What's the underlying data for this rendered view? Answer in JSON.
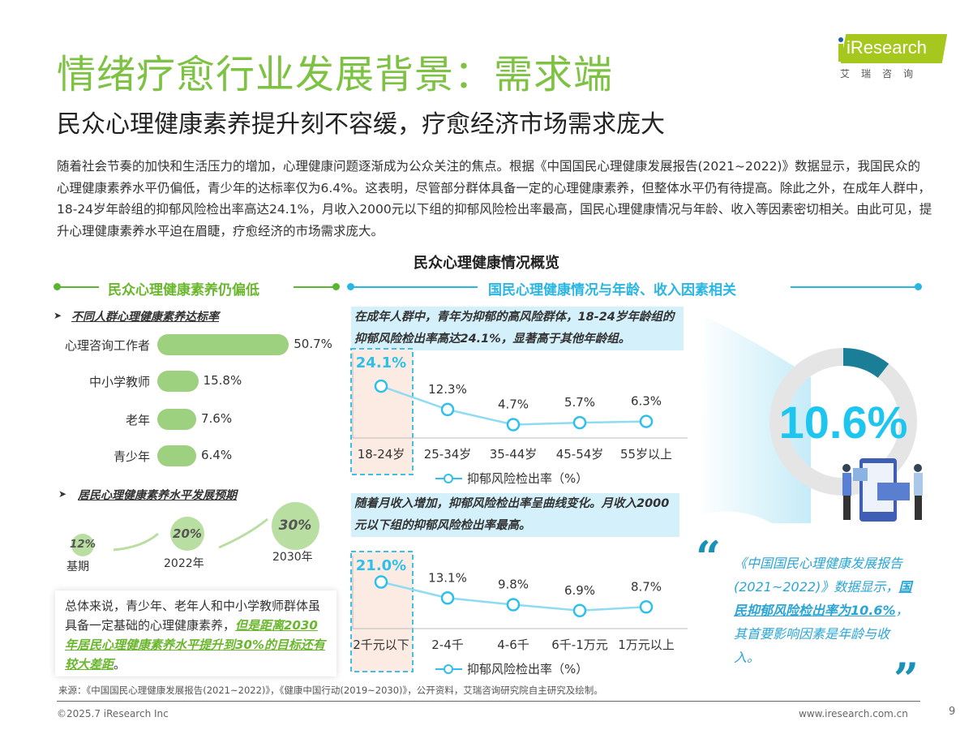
{
  "header": {
    "title": "情绪疗愈行业发展背景：需求端",
    "subtitle": "民众心理健康素养提升刻不容缓，疗愈经济市场需求庞大",
    "logo_text": "iResearch",
    "logo_cn": "艾瑞咨询",
    "brand_color": "#7dc242"
  },
  "intro": "随着社会节奏的加快和生活压力的增加，心理健康问题逐渐成为公众关注的焦点。根据《中国国民心理健康发展报告(2021~2022)》数据显示，我国民众的心理健康素养水平仍偏低，青少年的达标率仅为6.4%。这表明，尽管部分群体具备一定的心理健康素养，但整体水平仍有待提高。除此之外，在成年人群中，18-24岁年龄组的抑郁风险检出率高达24.1%，月收入2000元以下组的抑郁风险检出率最高，国民心理健康情况与年龄、收入等因素密切相关。由此可见，提升心理健康素养水平迫在眉睫，疗愈经济的市场需求庞大。",
  "overview_title": "民众心理健康情况概览",
  "left": {
    "section_title": "民众心理健康素养仍偏低",
    "sub1": "不同人群心理健康素养达标率",
    "sub2": "居民心理健康素养水平发展预期",
    "note_plain": "总体来说，青少年、老年人和中小学教师群体虽具备一定基础的心理健康素养，",
    "note_highlight": "但是距离2030年居民心理健康素养水平提升到30%的目标还有较大差距",
    "note_end": "。"
  },
  "right": {
    "section_title": "国民心理健康情况与年龄、收入因素相关",
    "callout1": "在成年人群中，青年为抑郁的高风险群体，18-24岁年龄组的抑郁风险检出率高达24.1%，显著高于其他年龄组。",
    "callout2": "随着月收入增加，抑郁风险检出率呈曲线变化。月收入2000元以下组的抑郁风险检出率最高。",
    "quote_a": "《中国国民心理健康发展报告(2021~2022)》数据显示，",
    "quote_b": "国民抑郁风险检出率为10.6%",
    "quote_c": "，其首要影响因素是年龄与收入。",
    "accent": "#29b6e3"
  },
  "chart_data": [
    {
      "type": "bar",
      "title": "不同人群心理健康素养达标率",
      "categories": [
        "心理咨询工作者",
        "中小学教师",
        "老年",
        "青少年"
      ],
      "values": [
        50.7,
        15.8,
        7.6,
        6.4
      ],
      "labels": [
        "50.7%",
        "15.8%",
        "7.6%",
        "6.4%"
      ],
      "color": "#9dd07f"
    },
    {
      "type": "bubble",
      "title": "居民心理健康素养水平发展预期",
      "categories": [
        "基期",
        "2022年",
        "2030年"
      ],
      "values": [
        12,
        20,
        30
      ],
      "labels": [
        "12%",
        "20%",
        "30%"
      ]
    },
    {
      "type": "line",
      "categories": [
        "18-24岁",
        "25-34岁",
        "35-44岁",
        "45-54岁",
        "55岁以上"
      ],
      "series": [
        {
          "name": "抑郁风险检出率（%）",
          "values": [
            24.1,
            12.3,
            4.7,
            5.7,
            6.3
          ],
          "labels": [
            "24.1%",
            "12.3%",
            "4.7%",
            "5.7%",
            "6.3%"
          ]
        }
      ],
      "ylim": [
        0,
        45
      ],
      "highlight": "18-24岁"
    },
    {
      "type": "line",
      "categories": [
        "2千元以下",
        "2-4千",
        "4-6千",
        "6千-1万元",
        "1万元以上"
      ],
      "series": [
        {
          "name": "抑郁风险检出率（%）",
          "values": [
            21.0,
            13.1,
            9.8,
            6.9,
            8.7
          ],
          "labels": [
            "21.0%",
            "13.1%",
            "9.8%",
            "6.9%",
            "8.7%"
          ]
        }
      ],
      "ylim": [
        0,
        40
      ],
      "highlight": "2千元以下"
    },
    {
      "type": "pie",
      "title": "",
      "values": [
        10.6
      ],
      "label": "10.6%",
      "color": "#1a7f96"
    }
  ],
  "footer": {
    "source": "来源：《中国国民心理健康发展报告(2021~2022)》，《健康中国行动(2019~2030)》，公开资料，艾瑞咨询研究院自主研究及绘制。",
    "copyright": "©2025.7 iResearch Inc",
    "url": "www.iresearch.com.cn",
    "page": "9"
  }
}
